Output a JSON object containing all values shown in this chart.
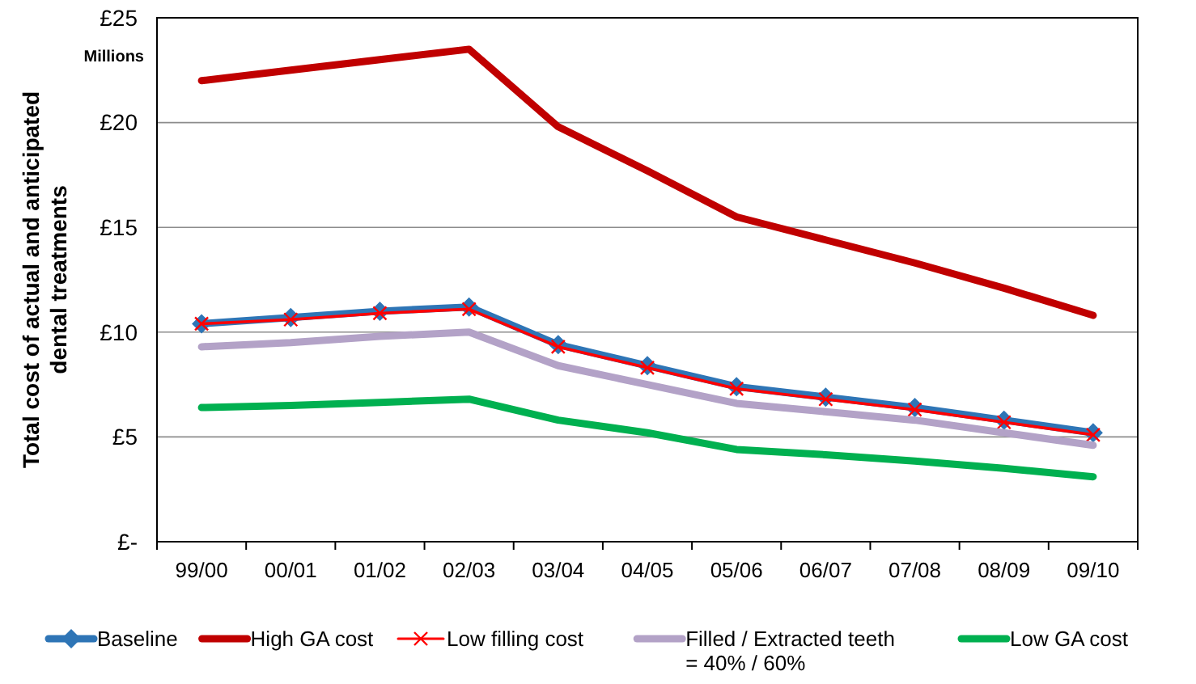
{
  "chart_data": {
    "type": "line",
    "ylabel": "Total cost of actual and anticipated dental treatments",
    "annotations": [
      "Millions"
    ],
    "categories": [
      "99/00",
      "00/01",
      "01/02",
      "02/03",
      "03/04",
      "04/05",
      "05/06",
      "06/07",
      "07/08",
      "08/09",
      "09/10"
    ],
    "series": [
      {
        "name": "Baseline",
        "color": "#2e75b6",
        "marker": "diamond",
        "values": [
          10.4,
          10.7,
          11.0,
          11.2,
          9.4,
          8.4,
          7.4,
          6.9,
          6.4,
          5.8,
          5.2
        ]
      },
      {
        "name": "High GA cost",
        "color": "#c00000",
        "marker": "none",
        "values": [
          22.0,
          22.5,
          23.0,
          23.5,
          19.8,
          17.7,
          15.5,
          14.4,
          13.3,
          12.1,
          10.8
        ]
      },
      {
        "name": "Low filling cost",
        "color": "#ff0000",
        "marker": "cross",
        "values": [
          10.4,
          10.6,
          10.9,
          11.1,
          9.3,
          8.3,
          7.3,
          6.8,
          6.3,
          5.7,
          5.1
        ]
      },
      {
        "name": "Filled / Extracted teeth\n= 40% / 60%",
        "color": "#b3a2c7",
        "marker": "none",
        "values": [
          9.3,
          9.5,
          9.8,
          10.0,
          8.4,
          7.5,
          6.6,
          6.2,
          5.8,
          5.2,
          4.6
        ]
      },
      {
        "name": "Low GA cost",
        "color": "#00b050",
        "marker": "none",
        "values": [
          6.4,
          6.5,
          6.65,
          6.8,
          5.8,
          5.2,
          4.4,
          4.15,
          3.85,
          3.5,
          3.1
        ]
      }
    ],
    "ylim": [
      0,
      25
    ],
    "yticks": [
      {
        "value": 0,
        "label": "£-"
      },
      {
        "value": 5,
        "label": "£5"
      },
      {
        "value": 10,
        "label": "£10"
      },
      {
        "value": 15,
        "label": "£15"
      },
      {
        "value": 20,
        "label": "£20"
      },
      {
        "value": 25,
        "label": "£25"
      }
    ],
    "grid": "y",
    "legend": "bottom"
  }
}
